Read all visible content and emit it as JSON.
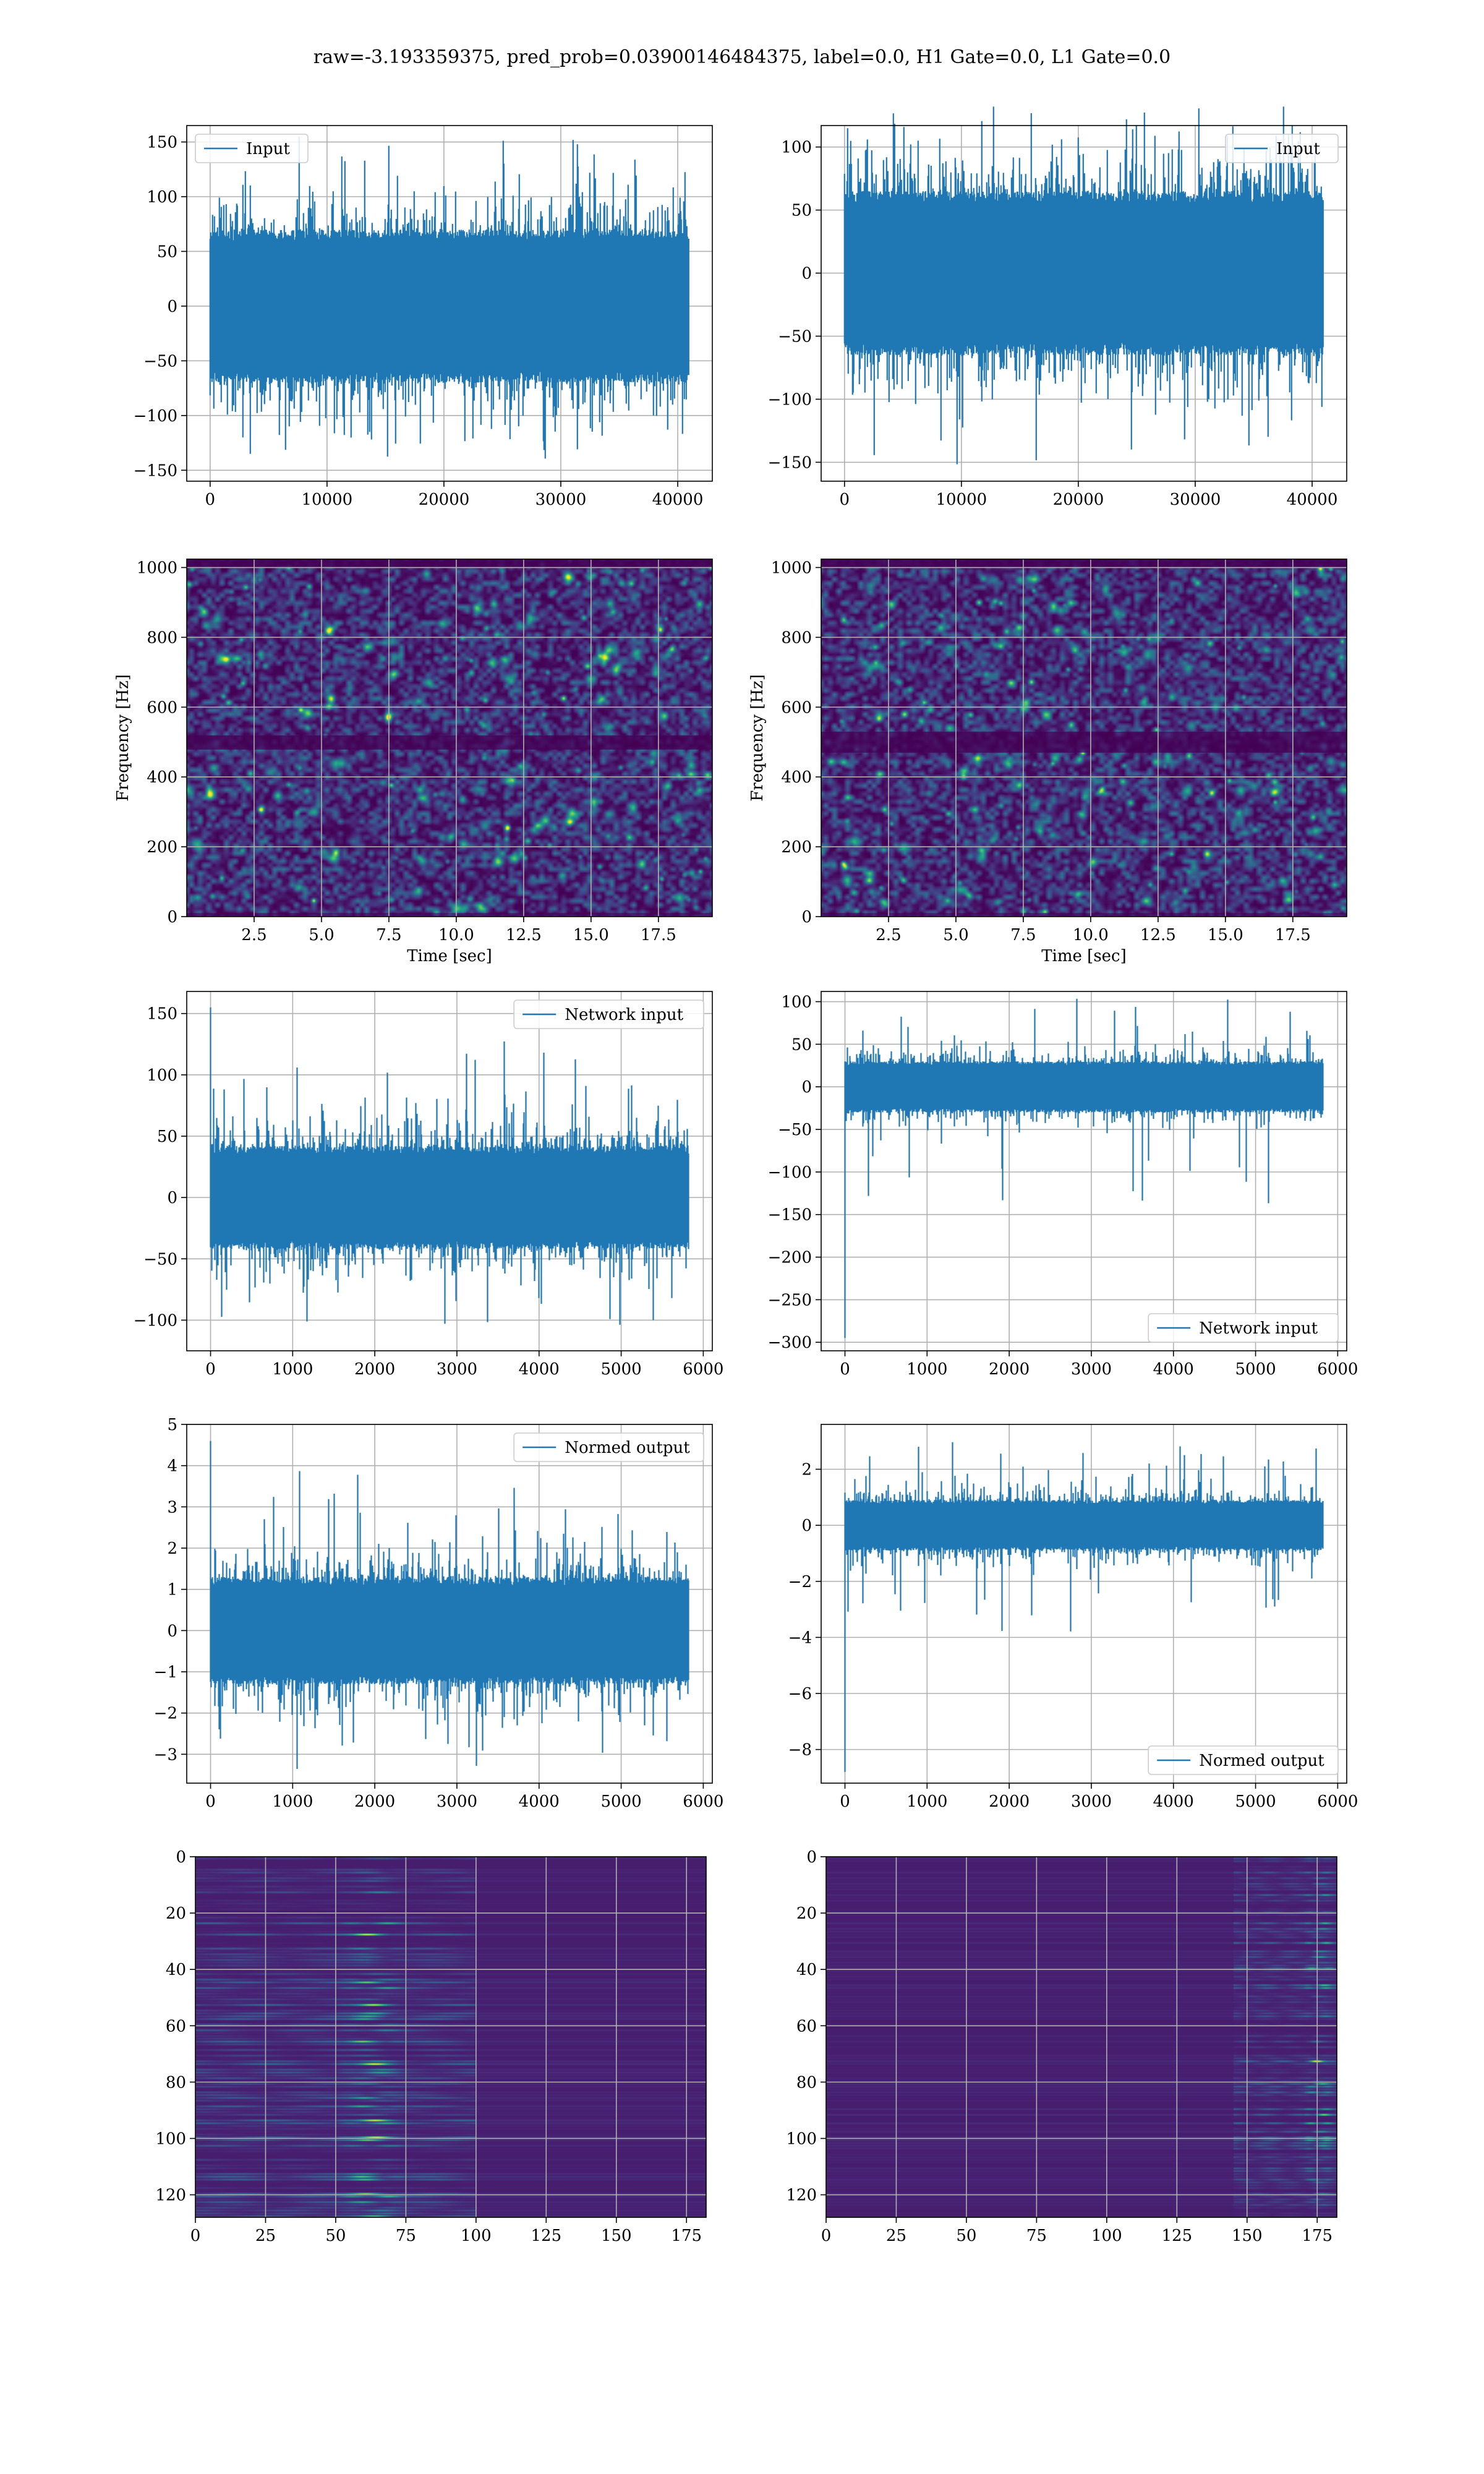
{
  "figure": {
    "suptitle": "raw=-3.193359375, pred_prob=0.03900146484375, label=0.0, H1 Gate=0.0, L1 Gate=0.0"
  },
  "palette": {
    "line": "#1f77b4",
    "grid": "#b0b0b0",
    "spine": "#000000",
    "viridis": [
      "#440154",
      "#482878",
      "#3e4989",
      "#31688e",
      "#26828e",
      "#1f9e89",
      "#35b779",
      "#6ece58",
      "#b5de2b",
      "#fde725"
    ]
  },
  "chart_data": [
    {
      "id": "h1-input",
      "type": "line",
      "title": "",
      "legend": {
        "label": "Input",
        "loc": "upper-left"
      },
      "xlabel": "",
      "ylabel": "",
      "xlim": [
        -2000,
        42960
      ],
      "ylim": [
        -160,
        165
      ],
      "xticks": [
        0,
        10000,
        20000,
        30000,
        40000
      ],
      "yticks": [
        -150,
        -100,
        -50,
        0,
        50,
        100,
        150
      ],
      "series": {
        "n": 40960,
        "x_range": [
          0,
          40960
        ],
        "core_amplitude": 70,
        "spread": 88,
        "max": 158,
        "min": -143,
        "seed": 11
      },
      "grid": true
    },
    {
      "id": "l1-input",
      "type": "line",
      "title": "",
      "legend": {
        "label": "Input",
        "loc": "upper-right"
      },
      "xlabel": "",
      "ylabel": "",
      "xlim": [
        -2000,
        42960
      ],
      "ylim": [
        -165,
        117
      ],
      "xticks": [
        0,
        10000,
        20000,
        30000,
        40000
      ],
      "yticks": [
        -150,
        -100,
        -50,
        0,
        50,
        100
      ],
      "series": {
        "n": 40960,
        "x_range": [
          0,
          40960
        ],
        "core_amplitude": 65,
        "spread": 85,
        "max": 132,
        "min": -152,
        "seed": 23
      },
      "grid": true
    },
    {
      "id": "h1-spectrogram",
      "type": "heatmap",
      "title": "",
      "xlabel": "Time [sec]",
      "ylabel": "Frequency [Hz]",
      "xlim": [
        0,
        19.5
      ],
      "ylim": [
        0,
        1024
      ],
      "xticks": [
        2.5,
        5.0,
        7.5,
        10.0,
        12.5,
        15.0,
        17.5
      ],
      "xtick_labels": [
        "2.5",
        "5.0",
        "7.5",
        "10.0",
        "12.5",
        "15.0",
        "17.5"
      ],
      "yticks": [
        0,
        200,
        400,
        600,
        800,
        1000
      ],
      "grid": true,
      "colormap": "viridis",
      "notes": {
        "dark_band_hz": [
          480,
          520
        ],
        "dark_top_hz": [
          1000,
          1024
        ],
        "bright_spot": [
          11.9,
          255
        ],
        "seed": 5
      }
    },
    {
      "id": "l1-spectrogram",
      "type": "heatmap",
      "title": "",
      "xlabel": "Time [sec]",
      "ylabel": "Frequency [Hz]",
      "xlim": [
        0,
        19.5
      ],
      "ylim": [
        0,
        1024
      ],
      "xticks": [
        2.5,
        5.0,
        7.5,
        10.0,
        12.5,
        15.0,
        17.5
      ],
      "xtick_labels": [
        "2.5",
        "5.0",
        "7.5",
        "10.0",
        "12.5",
        "15.0",
        "17.5"
      ],
      "yticks": [
        0,
        200,
        400,
        600,
        800,
        1000
      ],
      "grid": true,
      "colormap": "viridis",
      "notes": {
        "dark_band_hz": [
          470,
          530
        ],
        "dark_top_hz": [
          1000,
          1024
        ],
        "bright_spot": [
          9.7,
          470
        ],
        "seed": 9
      }
    },
    {
      "id": "h1-network-input",
      "type": "line",
      "title": "",
      "legend": {
        "label": "Network input",
        "loc": "upper-right"
      },
      "xlabel": "",
      "ylabel": "",
      "xlim": [
        -290,
        6110
      ],
      "ylim": [
        -125,
        168
      ],
      "xticks": [
        0,
        1000,
        2000,
        3000,
        4000,
        5000,
        6000
      ],
      "yticks": [
        -100,
        -50,
        0,
        50,
        100,
        150
      ],
      "series": {
        "n": 5820,
        "x_range": [
          0,
          5820
        ],
        "core_amplitude": 42,
        "spread": 55,
        "max": 130,
        "min": -112,
        "spike": 155,
        "seed": 31
      },
      "grid": true
    },
    {
      "id": "l1-network-input",
      "type": "line",
      "title": "",
      "legend": {
        "label": "Network input",
        "loc": "lower-right"
      },
      "xlabel": "",
      "ylabel": "",
      "xlim": [
        -290,
        6110
      ],
      "ylim": [
        -310,
        112
      ],
      "xticks": [
        0,
        1000,
        2000,
        3000,
        4000,
        5000,
        6000
      ],
      "yticks": [
        -300,
        -250,
        -200,
        -150,
        -100,
        -50,
        0,
        50,
        100
      ],
      "series": {
        "n": 5820,
        "x_range": [
          0,
          5820
        ],
        "core_amplitude": 30,
        "spread": 38,
        "max": 105,
        "min": -138,
        "spike": -295,
        "seed": 37
      },
      "grid": true
    },
    {
      "id": "h1-normed-output",
      "type": "line",
      "title": "",
      "legend": {
        "label": "Normed output",
        "loc": "upper-right"
      },
      "xlabel": "",
      "ylabel": "",
      "xlim": [
        -290,
        6110
      ],
      "ylim": [
        -3.7,
        5.0
      ],
      "xticks": [
        0,
        1000,
        2000,
        3000,
        4000,
        5000,
        6000
      ],
      "yticks": [
        -3,
        -2,
        -1,
        0,
        1,
        2,
        3,
        4,
        5
      ],
      "series": {
        "n": 5820,
        "x_range": [
          0,
          5820
        ],
        "core_amplitude": 1.3,
        "spread": 1.7,
        "max": 3.95,
        "min": -3.4,
        "spike": 4.6,
        "seed": 41
      },
      "grid": true
    },
    {
      "id": "l1-normed-output",
      "type": "line",
      "title": "",
      "legend": {
        "label": "Normed output",
        "loc": "lower-right"
      },
      "xlabel": "",
      "ylabel": "",
      "xlim": [
        -290,
        6110
      ],
      "ylim": [
        -9.2,
        3.6
      ],
      "xticks": [
        0,
        1000,
        2000,
        3000,
        4000,
        5000,
        6000
      ],
      "yticks": [
        -8,
        -6,
        -4,
        -2,
        0,
        2
      ],
      "series": {
        "n": 5820,
        "x_range": [
          0,
          5820
        ],
        "core_amplitude": 0.9,
        "spread": 1.2,
        "max": 3.1,
        "min": -4.2,
        "spike": -8.8,
        "seed": 43
      },
      "grid": true
    },
    {
      "id": "h1-feature-map",
      "type": "heatmap",
      "title": "",
      "xlabel": "",
      "ylabel": "",
      "xlim": [
        0,
        182
      ],
      "ylim": [
        0,
        128
      ],
      "y_inverted": true,
      "xticks": [
        0,
        25,
        50,
        75,
        100,
        125,
        150,
        175
      ],
      "yticks": [
        0,
        20,
        40,
        60,
        80,
        100,
        120
      ],
      "grid": true,
      "colormap": "viridis",
      "notes": {
        "active_cols": [
          0,
          100
        ],
        "peak_cols": [
          50,
          75
        ],
        "seed": 13
      }
    },
    {
      "id": "l1-feature-map",
      "type": "heatmap",
      "title": "",
      "xlabel": "",
      "ylabel": "",
      "xlim": [
        0,
        182
      ],
      "ylim": [
        0,
        128
      ],
      "y_inverted": true,
      "xticks": [
        0,
        25,
        50,
        75,
        100,
        125,
        150,
        175
      ],
      "yticks": [
        0,
        20,
        40,
        60,
        80,
        100,
        120
      ],
      "grid": true,
      "colormap": "viridis",
      "notes": {
        "active_cols": [
          145,
          182
        ],
        "peak_cols": [
          170,
          182
        ],
        "seed": 17
      }
    }
  ]
}
